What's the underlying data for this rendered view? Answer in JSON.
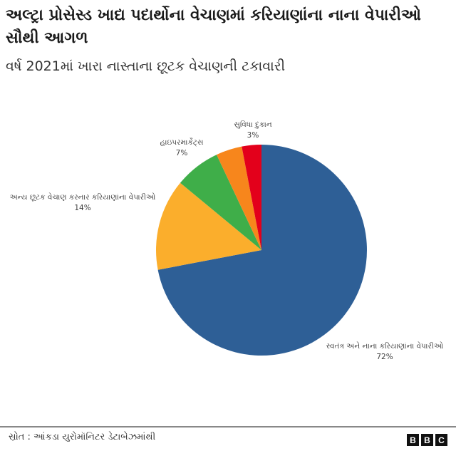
{
  "header": {
    "title": "અલ્ટ્રા પ્રોસેસ્ડ ખાદ્ય પદાર્થોના વેચાણમાં કરિયાણાંના નાના વેપારીઓ સૌથી આગળ",
    "subtitle": "વર્ષ 2021માં ખારા નાસ્તાના છૂટક વેચાણની ટકાવારી"
  },
  "chart_data": {
    "type": "pie",
    "title": "અલ્ટ્રા પ્રોસેસ્ડ ખાદ્ય પદાર્થોના વેચાણમાં કરિયાણાંના નાના વેપારીઓ સૌથી આગળ",
    "subtitle": "વર્ષ 2021માં ખારા નાસ્તાના છૂટક વેચાણની ટકાવારી",
    "start_angle": "12 o'clock, clockwise",
    "slices": [
      {
        "label": "સ્વતંત્ર અને નાના કરિયાણાંના વેપારીઓ",
        "value": 72,
        "value_label": "72%",
        "color": "#2e5f96"
      },
      {
        "label": "અન્ય છૂટક વેચાણ કરનાર કરિયાણાંના વેપારીઓ",
        "value": 14,
        "value_label": "14%",
        "color": "#fbae2c"
      },
      {
        "label": "હાઇપરમાર્કેટ્સ",
        "value": 7,
        "value_label": "7%",
        "color": "#3fae49"
      },
      {
        "label": "",
        "value": 4,
        "value_label": "",
        "color": "#f7861c"
      },
      {
        "label": "સુવિધા દુકાન",
        "value": 3,
        "value_label": "3%",
        "color": "#e3001b"
      }
    ],
    "legend": "none (direct labels)"
  },
  "footer": {
    "source": "સ્રોત : આંકડા યુરોમૉનિટર ડેટાબેઝમાંથી",
    "logo": [
      "B",
      "B",
      "C"
    ]
  }
}
